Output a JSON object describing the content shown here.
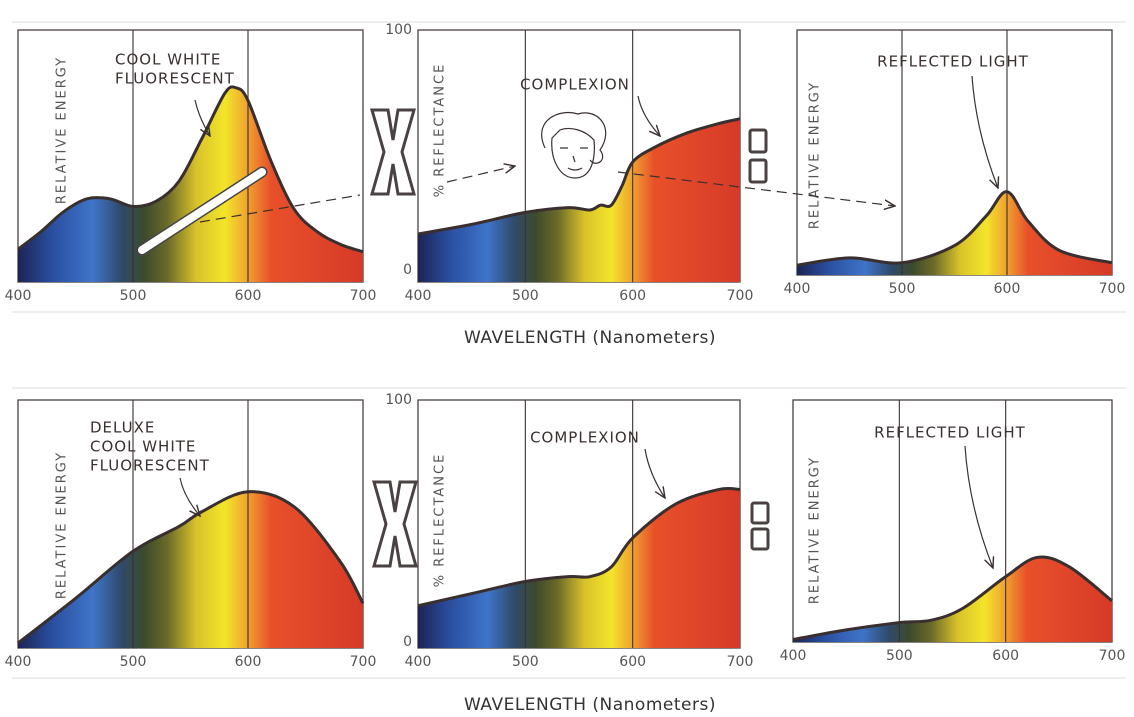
{
  "row_labels": [
    "WAVELENGTH (Nanometers)",
    "WAVELENGTH (Nanometers)"
  ],
  "chart_data": [
    {
      "type": "area",
      "ylabel": "RELATIVE ENERGY",
      "annotation": [
        "COOL WHITE",
        "FLUORESCENT"
      ],
      "x": [
        400,
        420,
        440,
        460,
        480,
        500,
        520,
        540,
        560,
        580,
        590,
        600,
        620,
        640,
        660,
        680,
        700
      ],
      "values": [
        13,
        20,
        28,
        33,
        33,
        30,
        32,
        40,
        57,
        75,
        77,
        72,
        48,
        29,
        20,
        15,
        12
      ],
      "xlim": [
        400,
        700
      ],
      "xticks": [
        400,
        500,
        600,
        700
      ],
      "ylim": [
        0,
        100
      ],
      "color": "#3a2f2f",
      "grid": true
    },
    {
      "type": "area",
      "ylabel": "% REFLECTANCE",
      "annotation": [
        "COMPLEXION"
      ],
      "x": [
        400,
        450,
        500,
        540,
        560,
        570,
        580,
        590,
        600,
        620,
        650,
        680,
        700
      ],
      "values": [
        15,
        19,
        24,
        26,
        25,
        27,
        27,
        35,
        45,
        51,
        57,
        61,
        63
      ],
      "xlim": [
        400,
        700
      ],
      "xticks": [
        400,
        500,
        600,
        700
      ],
      "ylim": [
        0,
        100
      ],
      "yticks": [
        0,
        100
      ],
      "color": "#3a2f2f",
      "grid": true
    },
    {
      "type": "area",
      "ylabel": "RELATIVE ENERGY",
      "annotation": [
        "REFLECTED LIGHT"
      ],
      "x": [
        400,
        450,
        500,
        550,
        580,
        600,
        620,
        650,
        700
      ],
      "values": [
        4,
        7,
        5,
        12,
        24,
        34,
        22,
        10,
        5
      ],
      "xlim": [
        400,
        700
      ],
      "xticks": [
        400,
        500,
        600,
        700
      ],
      "ylim": [
        0,
        100
      ],
      "color": "#3a2f2f",
      "grid": true
    },
    {
      "type": "area",
      "ylabel": "RELATIVE ENERGY",
      "annotation": [
        "DELUXE",
        "COOL WHITE",
        "FLUORESCENT"
      ],
      "x": [
        400,
        450,
        500,
        540,
        560,
        600,
        640,
        680,
        700
      ],
      "values": [
        2,
        20,
        39,
        49,
        55,
        63,
        57,
        35,
        18
      ],
      "xlim": [
        400,
        700
      ],
      "xticks": [
        400,
        500,
        600,
        700
      ],
      "ylim": [
        0,
        100
      ],
      "color": "#3a2f2f",
      "grid": true
    },
    {
      "type": "area",
      "ylabel": "% REFLECTANCE",
      "annotation": [
        "COMPLEXION"
      ],
      "x": [
        400,
        450,
        500,
        540,
        560,
        580,
        600,
        640,
        680,
        700
      ],
      "values": [
        15,
        20,
        25,
        27,
        27,
        31,
        43,
        57,
        63,
        63
      ],
      "xlim": [
        400,
        700
      ],
      "xticks": [
        400,
        500,
        600,
        700
      ],
      "ylim": [
        0,
        100
      ],
      "yticks": [
        0,
        100
      ],
      "color": "#3a2f2f",
      "grid": true
    },
    {
      "type": "area",
      "ylabel": "RELATIVE ENERGY",
      "annotation": [
        "REFLECTED LIGHT"
      ],
      "x": [
        400,
        450,
        500,
        530,
        560,
        600,
        630,
        660,
        700
      ],
      "values": [
        1,
        5,
        8,
        9,
        14,
        27,
        35,
        31,
        17
      ],
      "xlim": [
        400,
        700
      ],
      "xticks": [
        400,
        500,
        600,
        700
      ],
      "ylim": [
        0,
        100
      ],
      "color": "#3a2f2f",
      "grid": true
    }
  ]
}
